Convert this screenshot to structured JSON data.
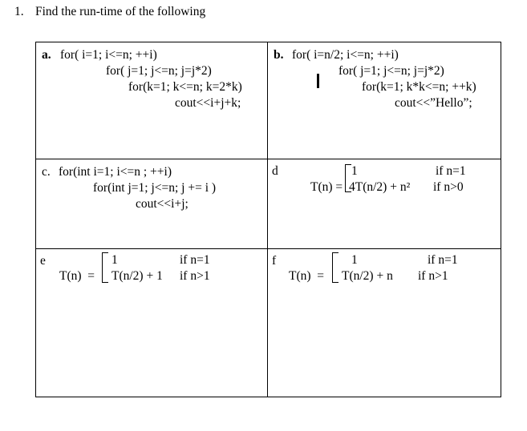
{
  "title": {
    "number": "1.",
    "text": "Find the run-time of the following"
  },
  "table": {
    "cells": {
      "a": {
        "label": "a.",
        "lines": [
          "for( i=1; i<=n; ++i)",
          "for( j=1; j<=n; j=j*2)",
          "for(k=1; k<=n; k=2*k)",
          "cout<<i+j+k;"
        ]
      },
      "b": {
        "label": "b.",
        "lines": [
          "for( i=n/2; i<=n; ++i)",
          "for( j=1; j<=n; j=j*2)",
          "for(k=1; k*k<=n; ++k)",
          "cout<<”Hello”;"
        ]
      },
      "c": {
        "label": "c.",
        "lines": [
          "for(int i=1; i<=n ; ++i)",
          "for(int j=1; j<=n; j += i )",
          "cout<<i+j;"
        ]
      },
      "d": {
        "label": "d",
        "func": "T(n) =",
        "cases": [
          {
            "expr": "1",
            "cond": "if n=1"
          },
          {
            "expr": "4T(n/2) + n²",
            "cond": "if n>0"
          }
        ]
      },
      "e": {
        "label": "e",
        "func": "T(n)  =",
        "cases": [
          {
            "expr": "1",
            "cond": "if n=1"
          },
          {
            "expr": "T(n/2) + 1",
            "cond": "if n>1"
          }
        ]
      },
      "f": {
        "label": "f",
        "func": "T(n)  =",
        "cases": [
          {
            "expr": "1",
            "cond": "if n=1"
          },
          {
            "expr": "T(n/2) + n",
            "cond": "if n>1"
          }
        ]
      }
    }
  },
  "controls": {
    "dropdown_glyph": "▼"
  },
  "colors": {
    "text": "#000000",
    "background": "#ffffff",
    "table_border": "#000000",
    "dropdown_bg": "#f1f1f1",
    "dropdown_border": "#9d9d9d"
  }
}
